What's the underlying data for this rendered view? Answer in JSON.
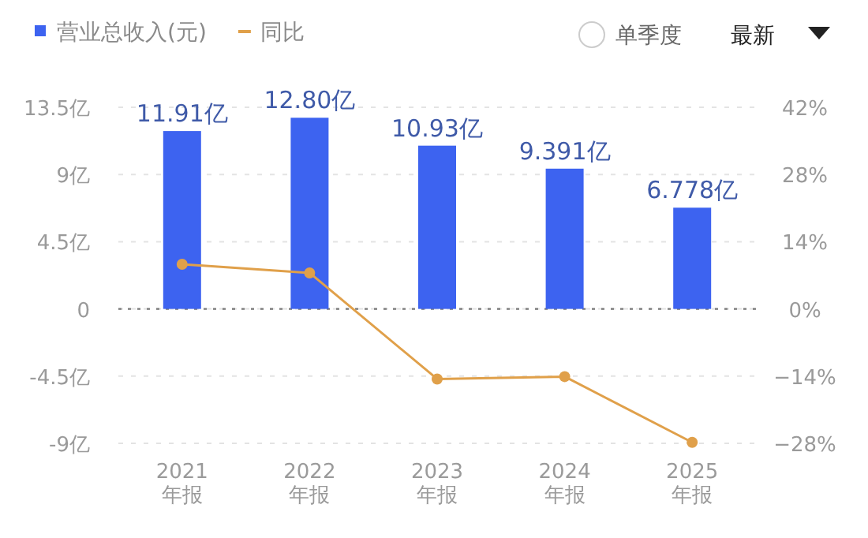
{
  "chart_data": {
    "type": "bar",
    "categories": [
      "2021\n年报",
      "2022\n年报",
      "2023\n年报",
      "2024\n年报",
      "2025\n年报"
    ],
    "series": [
      {
        "name": "营业总收入(元)",
        "color": "#3d63f0",
        "values": [
          11.91,
          12.8,
          10.93,
          9.391,
          6.778
        ],
        "value_labels": [
          "11.91亿",
          "12.80亿",
          "10.93亿",
          "9.391亿",
          "6.778亿"
        ]
      },
      {
        "name": "同比",
        "type": "line",
        "axis": "y2",
        "color": "#e0a04a",
        "values": [
          9.3,
          7.5,
          -14.6,
          -14.1,
          -27.8
        ]
      }
    ],
    "ylim": [
      -9,
      13.5
    ],
    "yticks": [
      {
        "value": 13.5,
        "label": "13.5亿"
      },
      {
        "value": 9,
        "label": "9亿"
      },
      {
        "value": 4.5,
        "label": "4.5亿"
      },
      0,
      {
        "value": -4.5,
        "label": "-4.5亿"
      },
      {
        "value": -9,
        "label": "-9亿"
      }
    ],
    "y2lim": [
      -28,
      42
    ],
    "y2ticks": [
      {
        "value": 42,
        "label": "42%"
      },
      {
        "value": 28,
        "label": "28%"
      },
      {
        "value": 14,
        "label": "14%"
      },
      {
        "value": 0,
        "label": "0%"
      },
      {
        "value": -14,
        "label": "−14%"
      },
      {
        "value": -28,
        "label": "−28%"
      }
    ],
    "ref_lines": [
      {
        "axis": "y",
        "value": 0,
        "color": "#777777",
        "line_style": "dotted"
      }
    ],
    "grid": "y",
    "legend": "top left",
    "marker": "circle",
    "line_style": "solid",
    "annotations": [
      "单季度",
      "最新"
    ]
  }
}
